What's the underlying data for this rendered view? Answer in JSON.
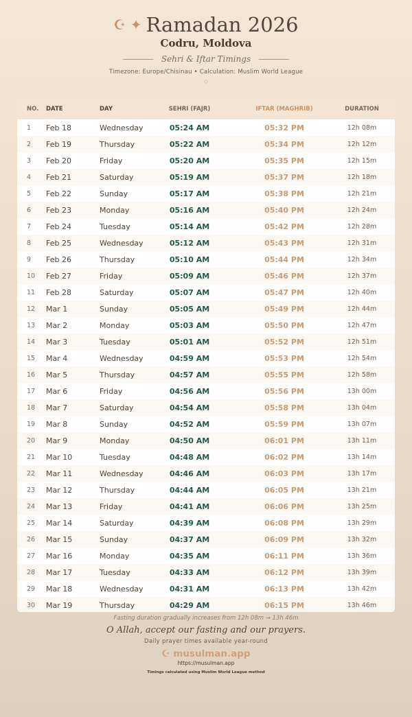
{
  "header": {
    "title": "Ramadan 2026",
    "title_icons": "☪ ✦",
    "location": "Codru, Moldova",
    "subtitle": "Sehri & Iftar Timings",
    "meta": "Timezone: Europe/Chisinau • Calculation: Muslim World League",
    "ornament": "◇"
  },
  "table": {
    "columns": [
      "NO.",
      "DATE",
      "DAY",
      "SEHRI (FAJR)",
      "IFTAR (MAGHRIB)",
      "DURATION"
    ],
    "rows": [
      [
        "1",
        "Feb 18",
        "Wednesday",
        "05:24 AM",
        "05:32 PM",
        "12h 08m"
      ],
      [
        "2",
        "Feb 19",
        "Thursday",
        "05:22 AM",
        "05:34 PM",
        "12h 12m"
      ],
      [
        "3",
        "Feb 20",
        "Friday",
        "05:20 AM",
        "05:35 PM",
        "12h 15m"
      ],
      [
        "4",
        "Feb 21",
        "Saturday",
        "05:19 AM",
        "05:37 PM",
        "12h 18m"
      ],
      [
        "5",
        "Feb 22",
        "Sunday",
        "05:17 AM",
        "05:38 PM",
        "12h 21m"
      ],
      [
        "6",
        "Feb 23",
        "Monday",
        "05:16 AM",
        "05:40 PM",
        "12h 24m"
      ],
      [
        "7",
        "Feb 24",
        "Tuesday",
        "05:14 AM",
        "05:42 PM",
        "12h 28m"
      ],
      [
        "8",
        "Feb 25",
        "Wednesday",
        "05:12 AM",
        "05:43 PM",
        "12h 31m"
      ],
      [
        "9",
        "Feb 26",
        "Thursday",
        "05:10 AM",
        "05:44 PM",
        "12h 34m"
      ],
      [
        "10",
        "Feb 27",
        "Friday",
        "05:09 AM",
        "05:46 PM",
        "12h 37m"
      ],
      [
        "11",
        "Feb 28",
        "Saturday",
        "05:07 AM",
        "05:47 PM",
        "12h 40m"
      ],
      [
        "12",
        "Mar 1",
        "Sunday",
        "05:05 AM",
        "05:49 PM",
        "12h 44m"
      ],
      [
        "13",
        "Mar 2",
        "Monday",
        "05:03 AM",
        "05:50 PM",
        "12h 47m"
      ],
      [
        "14",
        "Mar 3",
        "Tuesday",
        "05:01 AM",
        "05:52 PM",
        "12h 51m"
      ],
      [
        "15",
        "Mar 4",
        "Wednesday",
        "04:59 AM",
        "05:53 PM",
        "12h 54m"
      ],
      [
        "16",
        "Mar 5",
        "Thursday",
        "04:57 AM",
        "05:55 PM",
        "12h 58m"
      ],
      [
        "17",
        "Mar 6",
        "Friday",
        "04:56 AM",
        "05:56 PM",
        "13h 00m"
      ],
      [
        "18",
        "Mar 7",
        "Saturday",
        "04:54 AM",
        "05:58 PM",
        "13h 04m"
      ],
      [
        "19",
        "Mar 8",
        "Sunday",
        "04:52 AM",
        "05:59 PM",
        "13h 07m"
      ],
      [
        "20",
        "Mar 9",
        "Monday",
        "04:50 AM",
        "06:01 PM",
        "13h 11m"
      ],
      [
        "21",
        "Mar 10",
        "Tuesday",
        "04:48 AM",
        "06:02 PM",
        "13h 14m"
      ],
      [
        "22",
        "Mar 11",
        "Wednesday",
        "04:46 AM",
        "06:03 PM",
        "13h 17m"
      ],
      [
        "23",
        "Mar 12",
        "Thursday",
        "04:44 AM",
        "06:05 PM",
        "13h 21m"
      ],
      [
        "24",
        "Mar 13",
        "Friday",
        "04:41 AM",
        "06:06 PM",
        "13h 25m"
      ],
      [
        "25",
        "Mar 14",
        "Saturday",
        "04:39 AM",
        "06:08 PM",
        "13h 29m"
      ],
      [
        "26",
        "Mar 15",
        "Sunday",
        "04:37 AM",
        "06:09 PM",
        "13h 32m"
      ],
      [
        "27",
        "Mar 16",
        "Monday",
        "04:35 AM",
        "06:11 PM",
        "13h 36m"
      ],
      [
        "28",
        "Mar 17",
        "Tuesday",
        "04:33 AM",
        "06:12 PM",
        "13h 39m"
      ],
      [
        "29",
        "Mar 18",
        "Wednesday",
        "04:31 AM",
        "06:13 PM",
        "13h 42m"
      ],
      [
        "30",
        "Mar 19",
        "Thursday",
        "04:29 AM",
        "06:15 PM",
        "13h 46m"
      ]
    ]
  },
  "footer": {
    "note": "Fasting duration gradually increases from 12h 08m → 13h 46m",
    "dua": "O Allah, accept our fasting and our prayers.",
    "tagline": "Daily prayer times available year-round",
    "brand_icon": "☪",
    "brand": "musulman.app",
    "url": "https://musulman.app",
    "method": "Timings calculated using Muslim World League method"
  },
  "colors": {
    "sehri": "#1f5a4c",
    "iftar": "#c89a72",
    "accent": "#c8926a"
  }
}
